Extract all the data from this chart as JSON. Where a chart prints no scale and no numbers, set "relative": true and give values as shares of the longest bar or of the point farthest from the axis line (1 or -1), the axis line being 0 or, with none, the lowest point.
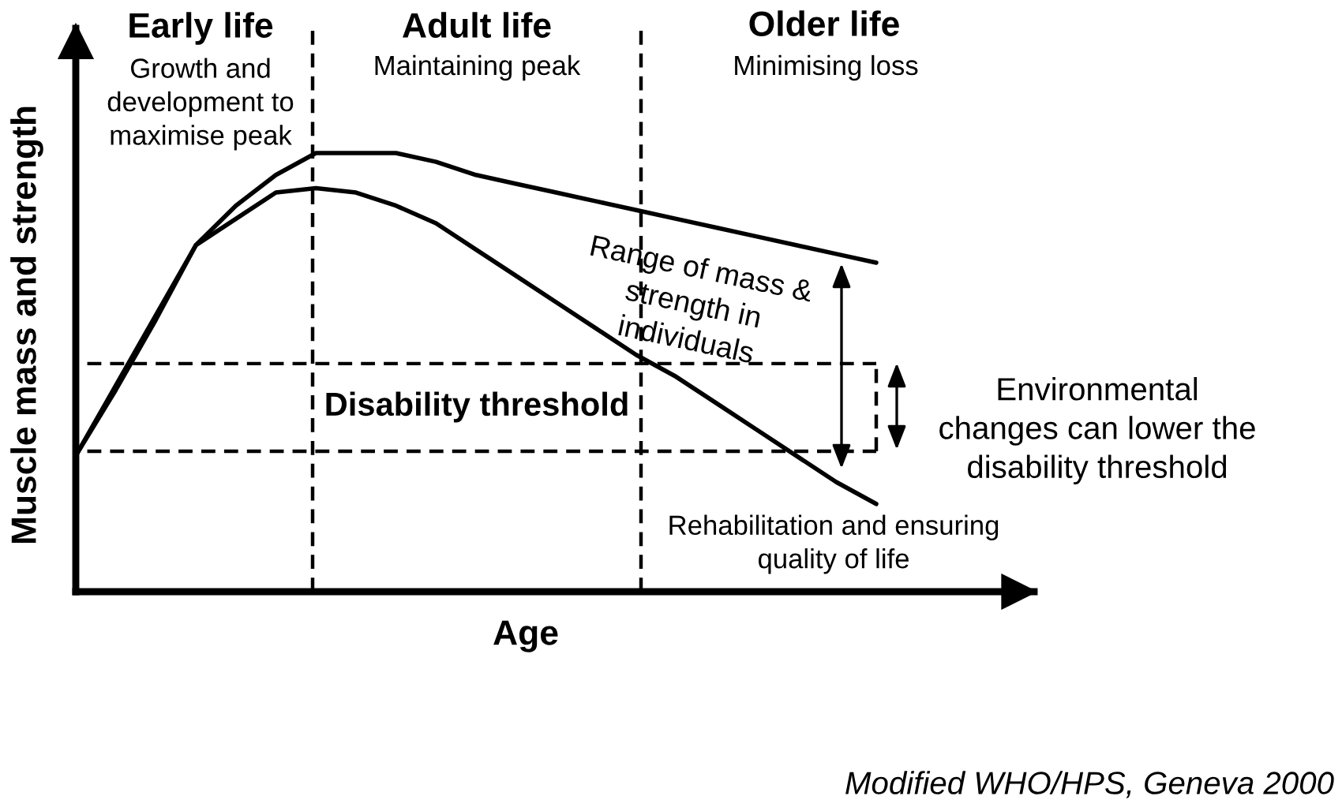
{
  "chart_data": {
    "type": "line",
    "relative": true,
    "xlabel": "Age",
    "ylabel": "Muscle mass and strength",
    "marker": "none",
    "line_style": "solid",
    "categories": [
      null,
      null,
      null,
      null,
      null,
      null,
      null,
      null,
      null,
      null,
      null,
      null,
      null,
      null,
      null,
      null,
      null,
      null,
      null,
      null,
      null
    ],
    "series": [
      {
        "color": "#000000",
        "values": [
          0.31,
          0.46,
          0.62,
          0.79,
          0.88,
          0.95,
          1,
          1,
          1,
          0.98,
          0.95,
          0.93,
          0.91,
          0.89,
          0.87,
          0.85,
          0.83,
          0.81,
          0.79,
          0.77,
          0.75
        ]
      },
      {
        "color": "#000000",
        "values": [
          0.31,
          0.47,
          0.63,
          0.79,
          0.85,
          0.91,
          0.92,
          0.91,
          0.88,
          0.84,
          0.78,
          0.72,
          0.66,
          0.6,
          0.54,
          0.49,
          0.43,
          0.37,
          0.31,
          0.25,
          0.2
        ]
      }
    ],
    "ref_lines": [
      {
        "axis": "y",
        "value": 0.52,
        "color": "#000000",
        "line_style": "dashed"
      },
      {
        "axis": "y",
        "value": 0.32,
        "color": "#000000",
        "line_style": "dashed"
      }
    ],
    "annotations": [
      "Early life",
      "Growth and\ndevelopment to\nmaximise peak",
      "Adult life",
      "Maintaining peak",
      "Older life",
      "Minimising loss",
      "Range of mass &\nstrength in\nindividuals",
      "Disability threshold",
      "Environmental\nchanges can lower the\ndisability threshold",
      "Rehabilitation and ensuring\nquality of life",
      "Modified WHO/HPS, Geneva 2000"
    ]
  }
}
